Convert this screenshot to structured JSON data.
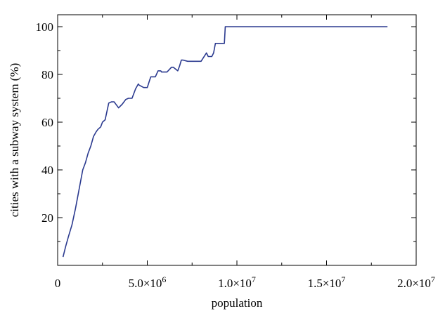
{
  "chart_data": {
    "type": "line",
    "title": "",
    "xlabel": "population",
    "ylabel": "cities with a subway system (%)",
    "xlim": [
      0,
      20000000
    ],
    "ylim": [
      0,
      105
    ],
    "x_ticks": [
      {
        "value": 0,
        "label": "0",
        "exp": ""
      },
      {
        "value": 5000000,
        "label": "5.0×10",
        "exp": "6"
      },
      {
        "value": 10000000,
        "label": "1.0×10",
        "exp": "7"
      },
      {
        "value": 15000000,
        "label": "1.5×10",
        "exp": "7"
      },
      {
        "value": 20000000,
        "label": "2.0×10",
        "exp": "7"
      }
    ],
    "y_ticks": [
      {
        "value": 20,
        "label": "20"
      },
      {
        "value": 40,
        "label": "40"
      },
      {
        "value": 60,
        "label": "60"
      },
      {
        "value": 80,
        "label": "80"
      },
      {
        "value": 100,
        "label": "100"
      }
    ],
    "grid": false,
    "line_color": "#2b3a8f",
    "series": [
      {
        "x": [
          300000,
          450000,
          600000,
          800000,
          1000000,
          1100000,
          1250000,
          1400000,
          1550000,
          1700000,
          1850000,
          2000000,
          2150000,
          2250000,
          2400000,
          2500000,
          2650000,
          2850000,
          3000000,
          3150000,
          3300000,
          3400000,
          3600000,
          3800000,
          3950000,
          4150000,
          4350000,
          4500000,
          4550000,
          4800000,
          5000000,
          5150000,
          5200000,
          5450000,
          5600000,
          5750000,
          5800000,
          6100000,
          6350000,
          6450000,
          6700000,
          6800000,
          6900000,
          7000000,
          7250000,
          7500000,
          8000000,
          8300000,
          8400000,
          8600000,
          8700000,
          8800000,
          9000000,
          9300000,
          9350000,
          18400000
        ],
        "y": [
          3.5,
          8,
          12,
          17,
          24,
          28,
          34,
          40,
          43,
          47,
          50,
          54,
          56,
          57,
          58,
          60,
          61,
          68,
          68.5,
          68.5,
          67,
          66,
          67.5,
          69.5,
          70,
          70,
          74,
          76,
          75.5,
          74.5,
          74.5,
          78,
          79,
          79,
          81.5,
          81.5,
          81,
          81,
          83,
          83,
          81.5,
          83.5,
          86,
          86,
          85.5,
          85.5,
          85.5,
          89,
          87.5,
          87.5,
          89,
          93,
          93,
          93,
          100,
          100
        ]
      }
    ]
  }
}
